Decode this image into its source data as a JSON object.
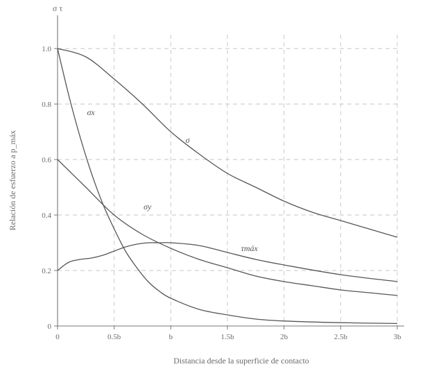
{
  "chart_data": {
    "type": "line",
    "title": "",
    "xlabel": "Distancia desde la superficie de contacto",
    "ylabel": "Relación de esfuerzo a p_máx",
    "y_axis_top_label": "σ τ",
    "xlim": [
      0,
      3
    ],
    "ylim": [
      0,
      1.1
    ],
    "grid": true,
    "x_ticks": [
      {
        "value": 0,
        "label": "0"
      },
      {
        "value": 0.5,
        "label": "0.5b"
      },
      {
        "value": 1,
        "label": "b"
      },
      {
        "value": 1.5,
        "label": "1.5b"
      },
      {
        "value": 2,
        "label": "2b"
      },
      {
        "value": 2.5,
        "label": "2.5b"
      },
      {
        "value": 3,
        "label": "3b"
      }
    ],
    "y_ticks": [
      {
        "value": 0,
        "label": "0"
      },
      {
        "value": 0.2,
        "label": "0.2"
      },
      {
        "value": 0.4,
        "label": "0.4"
      },
      {
        "value": 0.6,
        "label": "0.6"
      },
      {
        "value": 0.8,
        "label": "0.8"
      },
      {
        "value": 1.0,
        "label": "1.0"
      }
    ],
    "series": [
      {
        "name": "σ",
        "label_at": [
          1.13,
          0.66
        ],
        "x": [
          0,
          0.25,
          0.5,
          0.75,
          1.0,
          1.25,
          1.5,
          1.75,
          2.0,
          2.25,
          2.5,
          2.75,
          3.0
        ],
        "y": [
          1.0,
          0.97,
          0.89,
          0.8,
          0.7,
          0.62,
          0.55,
          0.5,
          0.45,
          0.41,
          0.38,
          0.35,
          0.32
        ]
      },
      {
        "name": "σx",
        "label_at": [
          0.26,
          0.76
        ],
        "x": [
          0,
          0.1,
          0.2,
          0.3,
          0.4,
          0.5,
          0.6,
          0.7,
          0.8,
          0.9,
          1.0,
          1.25,
          1.5,
          1.75,
          2.0,
          2.5,
          3.0
        ],
        "y": [
          1.0,
          0.83,
          0.68,
          0.55,
          0.44,
          0.35,
          0.27,
          0.21,
          0.16,
          0.125,
          0.1,
          0.06,
          0.04,
          0.025,
          0.018,
          0.012,
          0.009
        ]
      },
      {
        "name": "σy",
        "label_at": [
          0.76,
          0.42
        ],
        "x": [
          0,
          0.25,
          0.5,
          0.75,
          1.0,
          1.25,
          1.5,
          1.75,
          2.0,
          2.25,
          2.5,
          2.75,
          3.0
        ],
        "y": [
          0.6,
          0.5,
          0.4,
          0.33,
          0.28,
          0.24,
          0.21,
          0.18,
          0.16,
          0.145,
          0.13,
          0.12,
          0.11
        ]
      },
      {
        "name": "τmáx",
        "label_at": [
          1.62,
          0.27
        ],
        "x": [
          0,
          0.1,
          0.2,
          0.3,
          0.4,
          0.5,
          0.6,
          0.7,
          0.8,
          0.9,
          1.0,
          1.25,
          1.5,
          1.75,
          2.0,
          2.5,
          3.0
        ],
        "y": [
          0.2,
          0.23,
          0.24,
          0.245,
          0.255,
          0.27,
          0.285,
          0.295,
          0.3,
          0.3,
          0.3,
          0.29,
          0.265,
          0.24,
          0.22,
          0.185,
          0.16
        ]
      }
    ]
  }
}
